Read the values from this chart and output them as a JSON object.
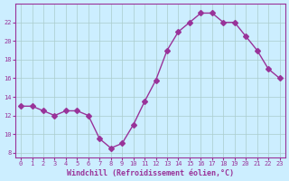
{
  "x": [
    0,
    1,
    2,
    3,
    4,
    5,
    6,
    7,
    8,
    9,
    10,
    11,
    12,
    13,
    14,
    15,
    16,
    17,
    18,
    19,
    20,
    21,
    22,
    23
  ],
  "y": [
    13,
    13,
    12.5,
    12,
    12.5,
    12.5,
    12,
    9.5,
    8.5,
    9,
    11,
    13.5,
    15.8,
    19,
    21,
    22,
    23,
    23,
    22,
    22,
    20.5,
    19,
    17,
    16
  ],
  "line_color": "#993399",
  "marker": "D",
  "marker_size": 3,
  "bg_color": "#cceeff",
  "grid_color": "#aacccc",
  "xlabel": "Windchill (Refroidissement éolien,°C)",
  "xlabel_color": "#993399",
  "tick_color": "#993399",
  "xlim": [
    -0.5,
    23.5
  ],
  "ylim": [
    7.5,
    24
  ],
  "yticks": [
    8,
    10,
    12,
    14,
    16,
    18,
    20,
    22
  ],
  "xticks": [
    0,
    1,
    2,
    3,
    4,
    5,
    6,
    7,
    8,
    9,
    10,
    11,
    12,
    13,
    14,
    15,
    16,
    17,
    18,
    19,
    20,
    21,
    22,
    23
  ]
}
